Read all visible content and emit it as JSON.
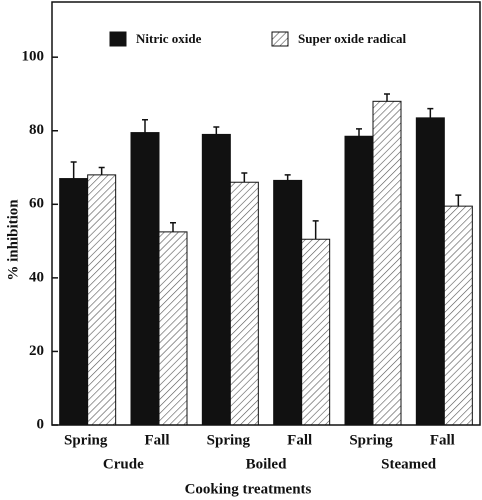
{
  "chart_data": {
    "type": "bar",
    "categories": [
      "Spring",
      "Fall",
      "Spring",
      "Fall",
      "Spring",
      "Fall"
    ],
    "groups": [
      "Crude",
      "Boiled",
      "Steamed"
    ],
    "series": [
      {
        "name": "Nitric oxide",
        "color": "#111111",
        "pattern": "solid",
        "values": [
          67,
          79.5,
          79,
          66.5,
          78.5,
          83.5
        ],
        "errors": [
          4.5,
          3.5,
          2,
          1.5,
          2,
          2.5
        ]
      },
      {
        "name": "Super oxide radical",
        "color": "#555555",
        "pattern": "hatch",
        "values": [
          68,
          52.5,
          66,
          50.5,
          88,
          59.5
        ],
        "errors": [
          2,
          2.5,
          2.5,
          5,
          2,
          3
        ]
      }
    ],
    "ylim": [
      0,
      115
    ],
    "yticks": [
      0,
      20,
      40,
      60,
      80,
      100
    ],
    "y_label": "% inhibition",
    "x_label": "Cooking treatments"
  }
}
